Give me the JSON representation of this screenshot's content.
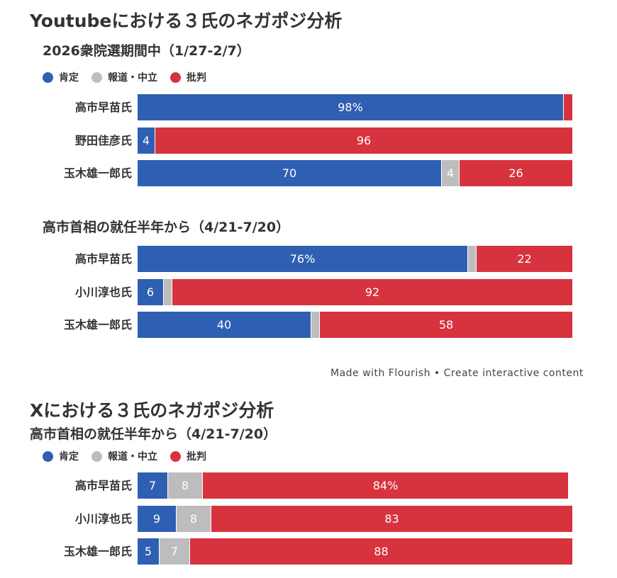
{
  "colors": {
    "positive": "#2f5fb3",
    "neutral": "#bdbdbd",
    "negative": "#d7333f"
  },
  "legend": {
    "positive": "肯定",
    "neutral": "報道・中立",
    "negative": "批判"
  },
  "youtube": {
    "title": "Youtubeにおける３氏のネガポジ分析"
  },
  "footer": "Made with Flourish • Create interactive content",
  "x": {
    "title": "Xにおける３氏のネガポジ分析"
  },
  "chart_data": [
    {
      "type": "bar",
      "orientation": "horizontal",
      "stacked": true,
      "title": "2026衆院選期間中（1/27-2/7）",
      "categories": [
        "高市早苗氏",
        "野田佳彦氏",
        "玉木雄一郎氏"
      ],
      "series": [
        {
          "name": "肯定",
          "values": [
            98,
            4,
            70
          ],
          "labels": [
            "98%",
            "4",
            "70"
          ]
        },
        {
          "name": "報道・中立",
          "values": [
            0,
            0,
            4
          ],
          "labels": [
            "",
            "",
            "4"
          ]
        },
        {
          "name": "批判",
          "values": [
            2,
            96,
            26
          ],
          "labels": [
            "",
            "96",
            "26"
          ]
        }
      ],
      "xlim": [
        0,
        100
      ],
      "legend": "top-left"
    },
    {
      "type": "bar",
      "orientation": "horizontal",
      "stacked": true,
      "title": "高市首相の就任半年から（4/21-7/20）",
      "categories": [
        "高市早苗氏",
        "小川淳也氏",
        "玉木雄一郎氏"
      ],
      "series": [
        {
          "name": "肯定",
          "values": [
            76,
            6,
            40
          ],
          "labels": [
            "76%",
            "6",
            "40"
          ]
        },
        {
          "name": "報道・中立",
          "values": [
            2,
            2,
            2
          ],
          "labels": [
            "",
            "",
            ""
          ]
        },
        {
          "name": "批判",
          "values": [
            22,
            92,
            58
          ],
          "labels": [
            "22",
            "92",
            "58"
          ]
        }
      ],
      "xlim": [
        0,
        100
      ],
      "legend": "top-left"
    },
    {
      "type": "bar",
      "orientation": "horizontal",
      "stacked": true,
      "title": "高市首相の就任半年から（4/21-7/20）",
      "categories": [
        "高市早苗氏",
        "小川淳也氏",
        "玉木雄一郎氏"
      ],
      "series": [
        {
          "name": "肯定",
          "values": [
            7,
            9,
            5
          ],
          "labels": [
            "7",
            "9",
            "5"
          ]
        },
        {
          "name": "報道・中立",
          "values": [
            8,
            8,
            7
          ],
          "labels": [
            "8",
            "8",
            "7"
          ]
        },
        {
          "name": "批判",
          "values": [
            84,
            83,
            88
          ],
          "labels": [
            "84%",
            "83",
            "88"
          ]
        }
      ],
      "xlim": [
        0,
        100
      ],
      "legend": "top-left"
    }
  ]
}
